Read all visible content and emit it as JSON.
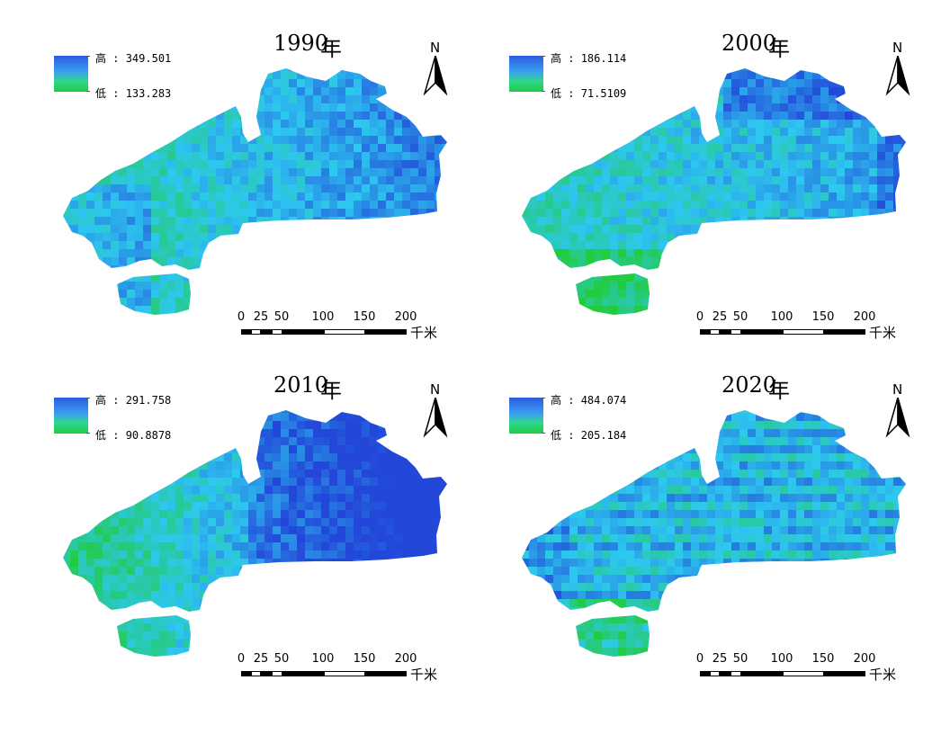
{
  "legend_labels": {
    "high": "高",
    "low": "低"
  },
  "scale": {
    "ticks": [
      "0",
      "25",
      "50",
      "100",
      "150",
      "200"
    ],
    "unit": "千米"
  },
  "north_label": "N",
  "colors": {
    "high": "#2347d9",
    "mid": "#2ec8f0",
    "low": "#22cc3a"
  },
  "maps": [
    {
      "year": "1990",
      "year_suffix": "年",
      "high_value": "349.501",
      "low_value": "133.283"
    },
    {
      "year": "2000",
      "year_suffix": "年",
      "high_value": "186.114",
      "low_value": "71.5109"
    },
    {
      "year": "2010",
      "year_suffix": "年",
      "high_value": "291.758",
      "low_value": "90.8878"
    },
    {
      "year": "2020",
      "year_suffix": "年",
      "high_value": "484.074",
      "low_value": "205.184"
    }
  ]
}
